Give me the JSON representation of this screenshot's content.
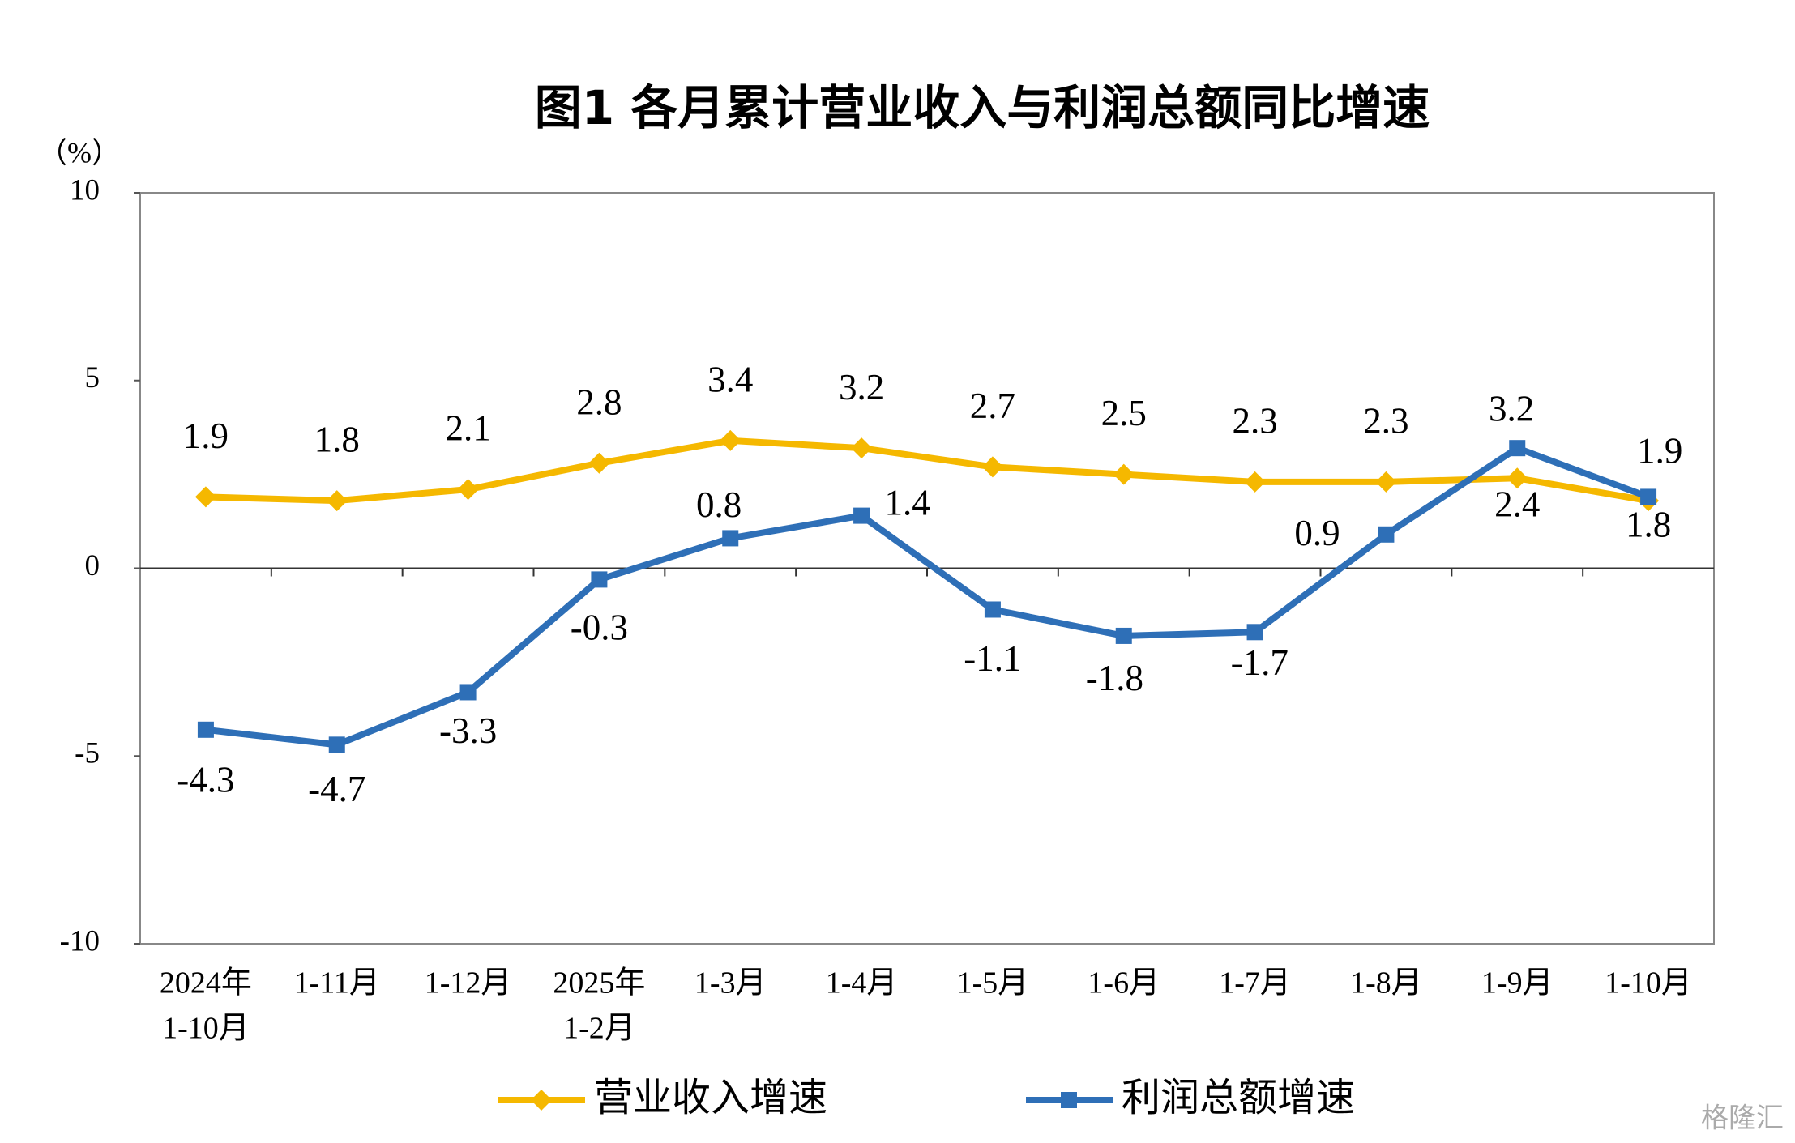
{
  "chart_data": {
    "type": "line",
    "title": "图1  各月累计营业收入与利润总额同比增速",
    "y_label": "（%）",
    "categories": [
      [
        "2024年",
        "1-10月"
      ],
      [
        "1-11月"
      ],
      [
        "1-12月"
      ],
      [
        "2025年",
        "1-2月"
      ],
      [
        "1-3月"
      ],
      [
        "1-4月"
      ],
      [
        "1-5月"
      ],
      [
        "1-6月"
      ],
      [
        "1-7月"
      ],
      [
        "1-8月"
      ],
      [
        "1-9月"
      ],
      [
        "1-10月"
      ]
    ],
    "series": [
      {
        "name": "营业收入增速",
        "color": "#f5b800",
        "marker": "diamond",
        "values": [
          1.9,
          1.8,
          2.1,
          2.8,
          3.4,
          3.2,
          2.7,
          2.5,
          2.3,
          2.3,
          2.4,
          1.8
        ]
      },
      {
        "name": "利润总额增速",
        "color": "#2e6fb7",
        "marker": "square",
        "values": [
          -4.3,
          -4.7,
          -3.3,
          -0.3,
          0.8,
          1.4,
          -1.1,
          -1.8,
          -1.7,
          0.9,
          3.2,
          1.9
        ]
      }
    ],
    "ylim": [
      -10,
      10
    ],
    "yticks": [
      -10,
      -5,
      0,
      5,
      10
    ],
    "watermark": "格隆汇"
  }
}
